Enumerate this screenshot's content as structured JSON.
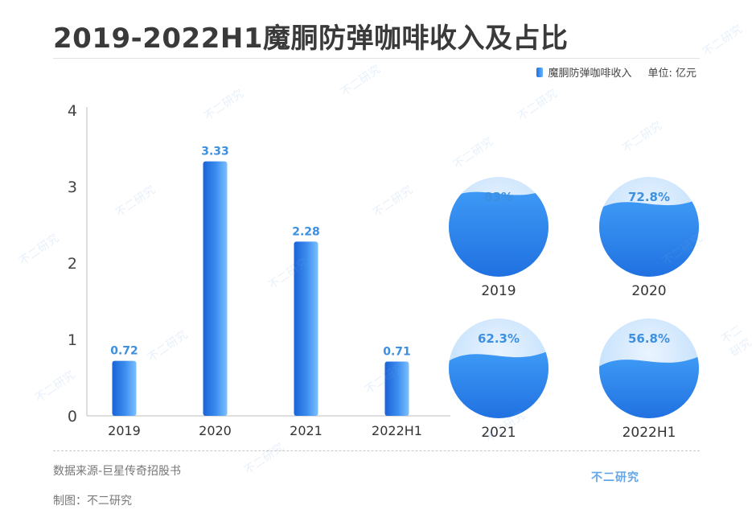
{
  "title": "2019-2022H1魔胴防弹咖啡收入及占比",
  "legend": {
    "series_label": "魔胴防弹咖啡收入",
    "unit": "单位: 亿元"
  },
  "footer": {
    "source": "数据来源-巨星传奇招股书",
    "maker": "制图：不二研究",
    "brand": "不二研究"
  },
  "watermark": "不二研究",
  "colors": {
    "bar_top": "#1e6fe0",
    "bar_bottom": "#6ab8ff",
    "label": "#3d8fe0",
    "wave": "#2f8ef2"
  },
  "chart_data": [
    {
      "type": "bar",
      "categories": [
        "2019",
        "2020",
        "2021",
        "2022H1"
      ],
      "series": [
        {
          "name": "魔胴防弹咖啡收入",
          "values": [
            0.72,
            3.33,
            2.28,
            0.71
          ]
        }
      ],
      "value_labels": [
        "0.72",
        "3.33",
        "2.28",
        "0.71"
      ],
      "yticks": [
        "0",
        "1",
        "2",
        "3",
        "4"
      ],
      "ylim": [
        0,
        4
      ],
      "grid": false,
      "legend_position": "top-right"
    },
    {
      "type": "pie",
      "categories": [
        "2019",
        "2020",
        "2021",
        "2022H1"
      ],
      "values": [
        83,
        72.8,
        62.3,
        56.8
      ],
      "value_labels": [
        "83%",
        "72.8%",
        "62.3%",
        "56.8%"
      ],
      "style": "liquid-fill"
    }
  ]
}
